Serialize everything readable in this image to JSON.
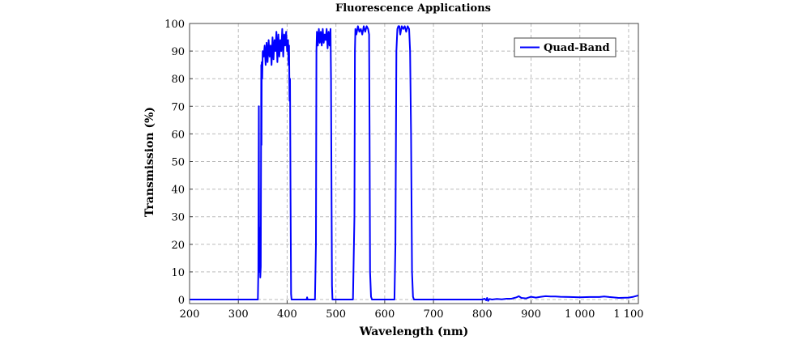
{
  "chart_data": {
    "type": "line",
    "title": "Fluorescence Applications",
    "xlabel": "Wavelength (nm)",
    "ylabel": "Transmission (%)",
    "xlim": [
      200,
      1120
    ],
    "ylim": [
      0,
      100
    ],
    "grid": true,
    "legend_position": "top-right",
    "xticks": [
      200,
      300,
      400,
      500,
      600,
      700,
      800,
      900,
      1000,
      1100
    ],
    "xtick_labels": [
      "200",
      "300",
      "400",
      "500",
      "600",
      "700",
      "800",
      "900",
      "1 000",
      "1 100"
    ],
    "yticks": [
      0,
      10,
      20,
      30,
      40,
      50,
      60,
      70,
      80,
      90,
      100
    ],
    "series": [
      {
        "name": "Quad-Band",
        "color": "#0000ff",
        "x": [
          200,
          340,
          341,
          342,
          342.5,
          343,
          344,
          345,
          346,
          347,
          347.5,
          348,
          349,
          350,
          352,
          354,
          356,
          358,
          360,
          362,
          364,
          366,
          368,
          370,
          372,
          374,
          376,
          378,
          380,
          382,
          384,
          386,
          388,
          390,
          392,
          394,
          396,
          398,
          400,
          402,
          403,
          404,
          405,
          406,
          407,
          408,
          409,
          440,
          441,
          442,
          457,
          459,
          460,
          461,
          463,
          465,
          467,
          469,
          471,
          473,
          475,
          477,
          479,
          481,
          483,
          485,
          487,
          489,
          490,
          491,
          492,
          493,
          495,
          535,
          538,
          539,
          540,
          542,
          545,
          548,
          551,
          554,
          557,
          560,
          563,
          566,
          568,
          569,
          570,
          572,
          574,
          620,
          622,
          624,
          626,
          628,
          630,
          632,
          635,
          638,
          641,
          644,
          647,
          650,
          652,
          654,
          656,
          658,
          660,
          800,
          805,
          808,
          810,
          812,
          815,
          820,
          830,
          840,
          850,
          860,
          870,
          875,
          880,
          890,
          900,
          910,
          920,
          930,
          940,
          950,
          960,
          980,
          1000,
          1020,
          1040,
          1050,
          1060,
          1080,
          1100,
          1110,
          1120
        ],
        "y": [
          0,
          0,
          10,
          70,
          30,
          10,
          26,
          8,
          12,
          85,
          56,
          86,
          80,
          90,
          88,
          92,
          85,
          93,
          86,
          94,
          88,
          92,
          85,
          95,
          87,
          94,
          90,
          97,
          86,
          96,
          88,
          94,
          90,
          98,
          88,
          96,
          92,
          97,
          90,
          94,
          85,
          92,
          72,
          80,
          40,
          2,
          0,
          0,
          0.8,
          0,
          0,
          20,
          90,
          97,
          92,
          98,
          93,
          97,
          92,
          98,
          93,
          96,
          94,
          98,
          91,
          97,
          92,
          98,
          80,
          40,
          5,
          0,
          0,
          0,
          30,
          90,
          98,
          96,
          99,
          97,
          98,
          96,
          99,
          97,
          99,
          98,
          96,
          60,
          10,
          1,
          0,
          0,
          20,
          90,
          98,
          99,
          99,
          96,
          99,
          98,
          99,
          97,
          99,
          98,
          90,
          60,
          10,
          1,
          0,
          0,
          0.3,
          -0.3,
          0.6,
          -0.5,
          0.2,
          0,
          0.2,
          0.1,
          0.3,
          0.3,
          0.8,
          1.2,
          0.6,
          0.4,
          1.0,
          0.7,
          1.0,
          1.2,
          1.1,
          1.1,
          1.0,
          0.9,
          0.8,
          0.9,
          0.9,
          1.1,
          0.9,
          0.6,
          0.7,
          1.0,
          1.5
        ]
      }
    ]
  }
}
